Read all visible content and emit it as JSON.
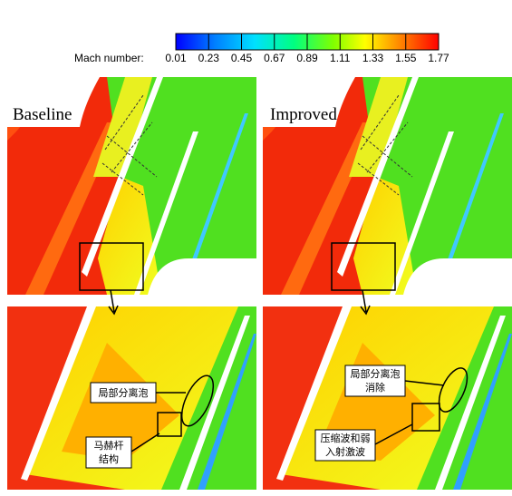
{
  "colorbar": {
    "label": "Mach number:",
    "ticks": [
      0.01,
      0.23,
      0.45,
      0.67,
      0.89,
      1.11,
      1.33,
      1.55,
      1.77
    ]
  },
  "panels": [
    {
      "label": "Baseline"
    },
    {
      "label": "Improved"
    }
  ],
  "annotations": [
    {
      "lines": [
        "局部分离泡"
      ]
    },
    {
      "lines": [
        "马赫杆",
        "结构"
      ]
    },
    {
      "lines": [
        "局部分离泡",
        "消除"
      ]
    },
    {
      "lines": [
        "压缩波和弱",
        "入射激波"
      ]
    }
  ]
}
